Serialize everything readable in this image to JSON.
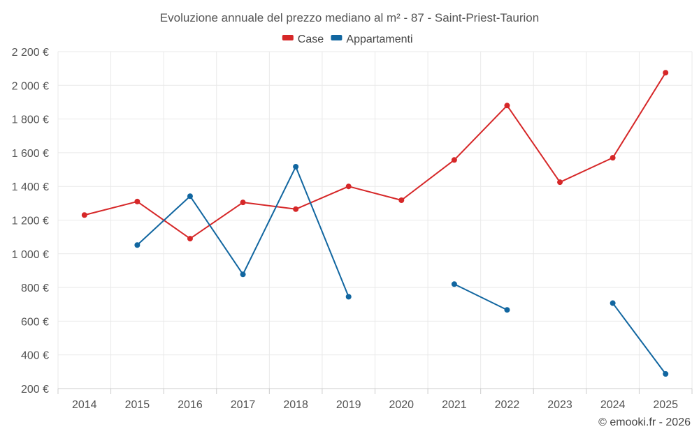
{
  "chart_data": {
    "type": "line",
    "title": "Evoluzione annuale del prezzo mediano al m² - 87 - Saint-Priest-Taurion",
    "categories": [
      "2014",
      "2015",
      "2016",
      "2017",
      "2018",
      "2019",
      "2020",
      "2021",
      "2022",
      "2023",
      "2024",
      "2025"
    ],
    "series": [
      {
        "name": "Case",
        "color": "#d62728",
        "values": [
          1230,
          1310,
          1090,
          1305,
          1265,
          1400,
          1318,
          1557,
          1880,
          1425,
          1570,
          2075
        ]
      },
      {
        "name": "Appartamenti",
        "color": "#1166a0",
        "values": [
          null,
          1052,
          1342,
          878,
          1517,
          745,
          null,
          820,
          667,
          null,
          707,
          287
        ]
      }
    ],
    "ylim": [
      200,
      2200
    ],
    "yticks": [
      200,
      400,
      600,
      800,
      1000,
      1200,
      1400,
      1600,
      1800,
      2000,
      2200
    ],
    "ytick_labels": [
      "200 €",
      "400 €",
      "600 €",
      "800 €",
      "1 000 €",
      "1 200 €",
      "1 400 €",
      "1 600 €",
      "1 800 €",
      "2 000 €",
      "2 200 €"
    ],
    "xlabel": "",
    "ylabel": "",
    "grid": true,
    "legend_position": "top-center"
  },
  "credit": "© emooki.fr - 2026"
}
